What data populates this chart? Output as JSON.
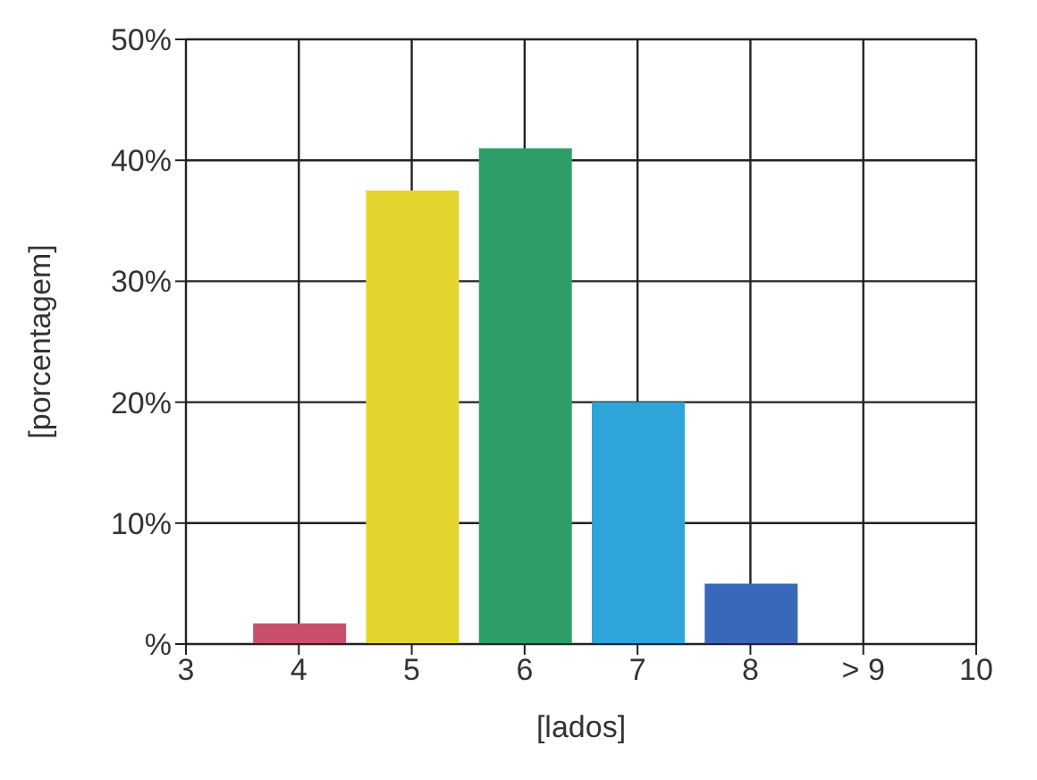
{
  "chart_data": {
    "type": "bar",
    "xlabel": "[lados]",
    "ylabel": "[porcentagem]",
    "x": [
      4,
      5,
      6,
      7,
      8
    ],
    "values": [
      1.7,
      37.5,
      41,
      20,
      5
    ],
    "colors": [
      "#c8506a",
      "#e6d42e",
      "#2e9e68",
      "#2ea4d8",
      "#3a68b8"
    ],
    "xlim": [
      3,
      10
    ],
    "xticks": [
      3,
      4,
      5,
      6,
      7,
      8,
      {
        "value": 9,
        "label": "> 9"
      },
      10
    ],
    "ylim": [
      0,
      50
    ],
    "yticks": [
      {
        "value": 0,
        "label": "%"
      },
      {
        "value": 10,
        "label": "10%"
      },
      {
        "value": 20,
        "label": "20%"
      },
      {
        "value": 30,
        "label": "30%"
      },
      {
        "value": 40,
        "label": "40%"
      },
      {
        "value": 50,
        "label": "50%"
      }
    ],
    "grid": true
  }
}
